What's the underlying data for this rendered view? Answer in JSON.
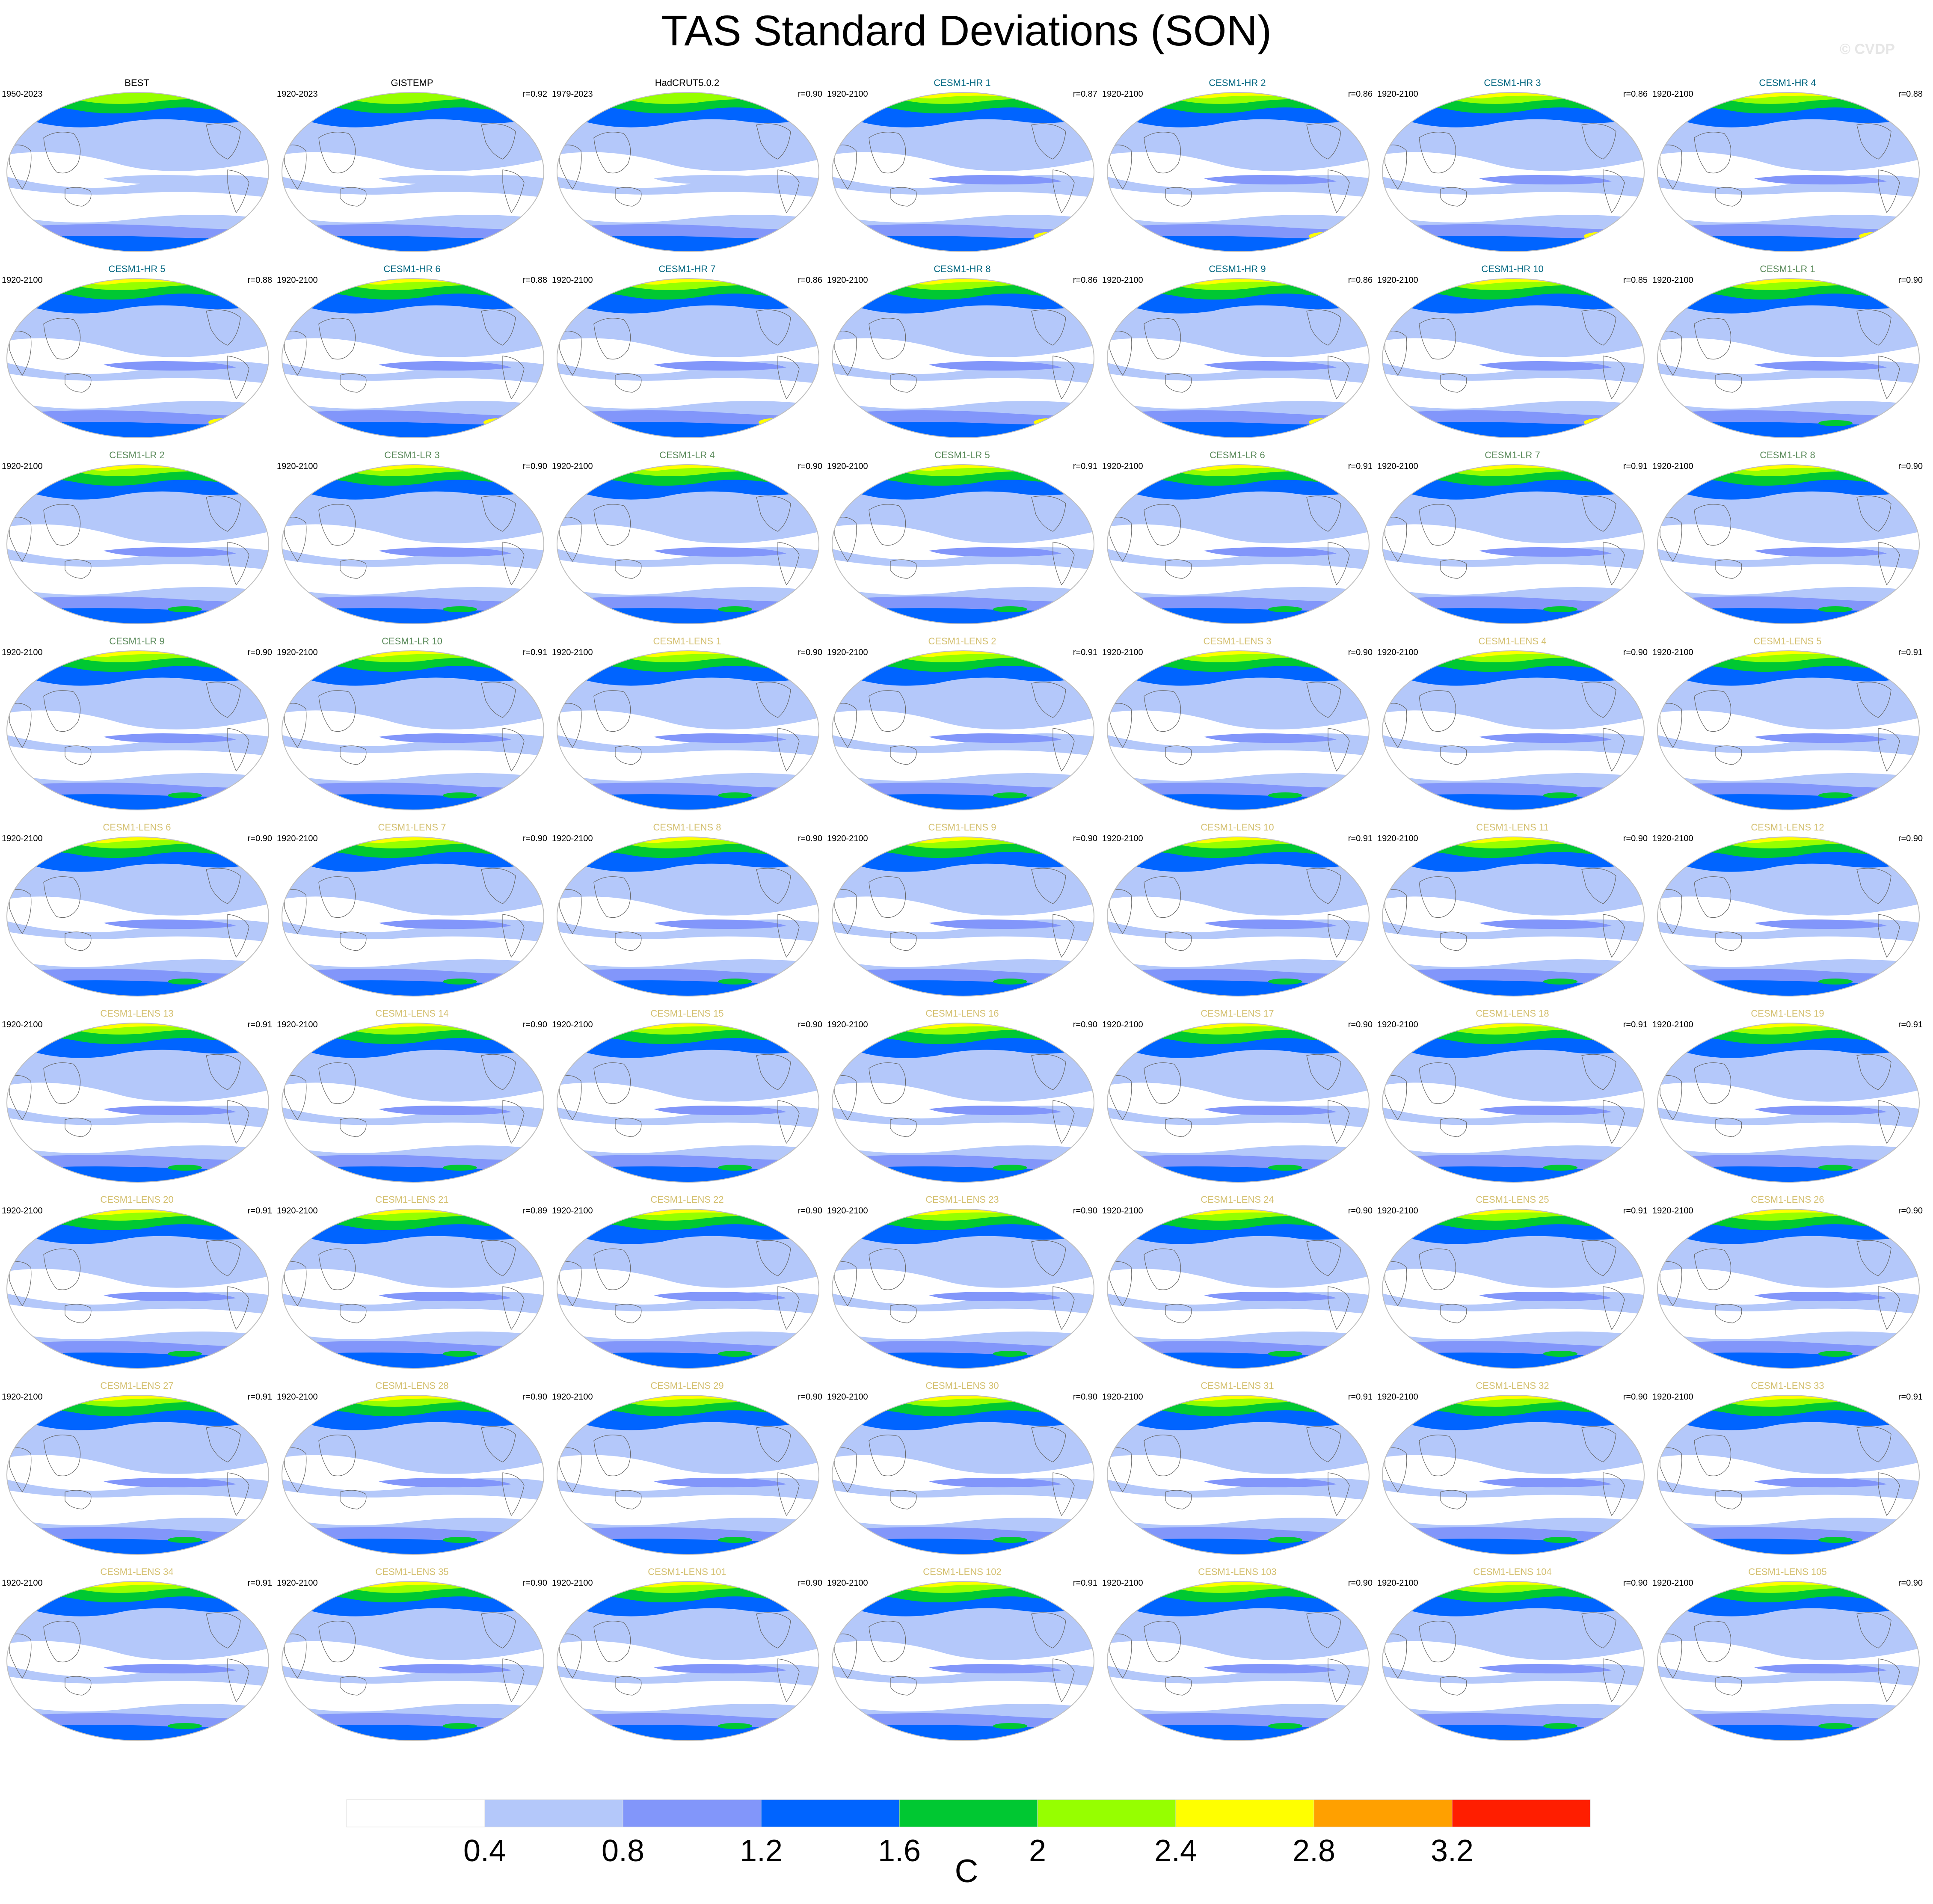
{
  "title": "TAS Standard Deviations (SON)",
  "watermark": "© CVDP",
  "colors": {
    "levels": [
      "#ffffff",
      "#b4c8fa",
      "#8296fa",
      "#0064ff",
      "#00c832",
      "#96ff00",
      "#ffff00",
      "#ffa000",
      "#ff1e00"
    ],
    "obs_label": "#000000",
    "hr_label": "#006680",
    "lr_label": "#5a8a5a",
    "lens_label": "#d4c070",
    "land_outline": "#666666",
    "globe_outline": "#bfbfbf"
  },
  "chart_data": {
    "type": "heatmap",
    "title": "TAS Standard Deviations (SON)",
    "colorbar": {
      "ticks": [
        "0.4",
        "0.8",
        "1.2",
        "1.6",
        "2",
        "2.4",
        "2.8",
        "3.2"
      ],
      "unit": "C"
    },
    "panels": [
      {
        "name": "BEST",
        "years": "1950-2023",
        "corr": "",
        "group": "obs"
      },
      {
        "name": "GISTEMP",
        "years": "1920-2023",
        "corr": "r=0.92",
        "group": "obs"
      },
      {
        "name": "HadCRUT5.0.2",
        "years": "1979-2023",
        "corr": "r=0.90",
        "group": "obs"
      },
      {
        "name": "CESM1-HR 1",
        "years": "1920-2100",
        "corr": "r=0.87",
        "group": "hr"
      },
      {
        "name": "CESM1-HR 2",
        "years": "1920-2100",
        "corr": "r=0.86",
        "group": "hr"
      },
      {
        "name": "CESM1-HR 3",
        "years": "1920-2100",
        "corr": "r=0.86",
        "group": "hr"
      },
      {
        "name": "CESM1-HR 4",
        "years": "1920-2100",
        "corr": "r=0.88",
        "group": "hr"
      },
      {
        "name": "CESM1-HR 5",
        "years": "1920-2100",
        "corr": "r=0.88",
        "group": "hr"
      },
      {
        "name": "CESM1-HR 6",
        "years": "1920-2100",
        "corr": "r=0.88",
        "group": "hr"
      },
      {
        "name": "CESM1-HR 7",
        "years": "1920-2100",
        "corr": "r=0.86",
        "group": "hr"
      },
      {
        "name": "CESM1-HR 8",
        "years": "1920-2100",
        "corr": "r=0.86",
        "group": "hr"
      },
      {
        "name": "CESM1-HR 9",
        "years": "1920-2100",
        "corr": "r=0.86",
        "group": "hr"
      },
      {
        "name": "CESM1-HR 10",
        "years": "1920-2100",
        "corr": "r=0.85",
        "group": "hr"
      },
      {
        "name": "CESM1-LR 1",
        "years": "1920-2100",
        "corr": "r=0.90",
        "group": "lr"
      },
      {
        "name": "CESM1-LR 2",
        "years": "1920-2100",
        "corr": "",
        "group": "lr"
      },
      {
        "name": "CESM1-LR 3",
        "years": "1920-2100",
        "corr": "r=0.90",
        "group": "lr"
      },
      {
        "name": "CESM1-LR 4",
        "years": "1920-2100",
        "corr": "r=0.90",
        "group": "lr"
      },
      {
        "name": "CESM1-LR 5",
        "years": "1920-2100",
        "corr": "r=0.91",
        "group": "lr"
      },
      {
        "name": "CESM1-LR 6",
        "years": "1920-2100",
        "corr": "r=0.91",
        "group": "lr"
      },
      {
        "name": "CESM1-LR 7",
        "years": "1920-2100",
        "corr": "r=0.91",
        "group": "lr"
      },
      {
        "name": "CESM1-LR 8",
        "years": "1920-2100",
        "corr": "r=0.90",
        "group": "lr"
      },
      {
        "name": "CESM1-LR 9",
        "years": "1920-2100",
        "corr": "r=0.90",
        "group": "lr"
      },
      {
        "name": "CESM1-LR 10",
        "years": "1920-2100",
        "corr": "r=0.91",
        "group": "lr"
      },
      {
        "name": "CESM1-LENS 1",
        "years": "1920-2100",
        "corr": "r=0.90",
        "group": "lens"
      },
      {
        "name": "CESM1-LENS 2",
        "years": "1920-2100",
        "corr": "r=0.91",
        "group": "lens"
      },
      {
        "name": "CESM1-LENS 3",
        "years": "1920-2100",
        "corr": "r=0.90",
        "group": "lens"
      },
      {
        "name": "CESM1-LENS 4",
        "years": "1920-2100",
        "corr": "r=0.90",
        "group": "lens"
      },
      {
        "name": "CESM1-LENS 5",
        "years": "1920-2100",
        "corr": "r=0.91",
        "group": "lens"
      },
      {
        "name": "CESM1-LENS 6",
        "years": "1920-2100",
        "corr": "r=0.90",
        "group": "lens"
      },
      {
        "name": "CESM1-LENS 7",
        "years": "1920-2100",
        "corr": "r=0.90",
        "group": "lens"
      },
      {
        "name": "CESM1-LENS 8",
        "years": "1920-2100",
        "corr": "r=0.90",
        "group": "lens"
      },
      {
        "name": "CESM1-LENS 9",
        "years": "1920-2100",
        "corr": "r=0.90",
        "group": "lens"
      },
      {
        "name": "CESM1-LENS 10",
        "years": "1920-2100",
        "corr": "r=0.91",
        "group": "lens"
      },
      {
        "name": "CESM1-LENS 11",
        "years": "1920-2100",
        "corr": "r=0.90",
        "group": "lens"
      },
      {
        "name": "CESM1-LENS 12",
        "years": "1920-2100",
        "corr": "r=0.90",
        "group": "lens"
      },
      {
        "name": "CESM1-LENS 13",
        "years": "1920-2100",
        "corr": "r=0.91",
        "group": "lens"
      },
      {
        "name": "CESM1-LENS 14",
        "years": "1920-2100",
        "corr": "r=0.90",
        "group": "lens"
      },
      {
        "name": "CESM1-LENS 15",
        "years": "1920-2100",
        "corr": "r=0.90",
        "group": "lens"
      },
      {
        "name": "CESM1-LENS 16",
        "years": "1920-2100",
        "corr": "r=0.90",
        "group": "lens"
      },
      {
        "name": "CESM1-LENS 17",
        "years": "1920-2100",
        "corr": "r=0.90",
        "group": "lens"
      },
      {
        "name": "CESM1-LENS 18",
        "years": "1920-2100",
        "corr": "r=0.91",
        "group": "lens"
      },
      {
        "name": "CESM1-LENS 19",
        "years": "1920-2100",
        "corr": "r=0.91",
        "group": "lens"
      },
      {
        "name": "CESM1-LENS 20",
        "years": "1920-2100",
        "corr": "r=0.91",
        "group": "lens"
      },
      {
        "name": "CESM1-LENS 21",
        "years": "1920-2100",
        "corr": "r=0.89",
        "group": "lens"
      },
      {
        "name": "CESM1-LENS 22",
        "years": "1920-2100",
        "corr": "r=0.90",
        "group": "lens"
      },
      {
        "name": "CESM1-LENS 23",
        "years": "1920-2100",
        "corr": "r=0.90",
        "group": "lens"
      },
      {
        "name": "CESM1-LENS 24",
        "years": "1920-2100",
        "corr": "r=0.90",
        "group": "lens"
      },
      {
        "name": "CESM1-LENS 25",
        "years": "1920-2100",
        "corr": "r=0.91",
        "group": "lens"
      },
      {
        "name": "CESM1-LENS 26",
        "years": "1920-2100",
        "corr": "r=0.90",
        "group": "lens"
      },
      {
        "name": "CESM1-LENS 27",
        "years": "1920-2100",
        "corr": "r=0.91",
        "group": "lens"
      },
      {
        "name": "CESM1-LENS 28",
        "years": "1920-2100",
        "corr": "r=0.90",
        "group": "lens"
      },
      {
        "name": "CESM1-LENS 29",
        "years": "1920-2100",
        "corr": "r=0.90",
        "group": "lens"
      },
      {
        "name": "CESM1-LENS 30",
        "years": "1920-2100",
        "corr": "r=0.90",
        "group": "lens"
      },
      {
        "name": "CESM1-LENS 31",
        "years": "1920-2100",
        "corr": "r=0.91",
        "group": "lens"
      },
      {
        "name": "CESM1-LENS 32",
        "years": "1920-2100",
        "corr": "r=0.90",
        "group": "lens"
      },
      {
        "name": "CESM1-LENS 33",
        "years": "1920-2100",
        "corr": "r=0.91",
        "group": "lens"
      },
      {
        "name": "CESM1-LENS 34",
        "years": "1920-2100",
        "corr": "r=0.91",
        "group": "lens"
      },
      {
        "name": "CESM1-LENS 35",
        "years": "1920-2100",
        "corr": "r=0.90",
        "group": "lens"
      },
      {
        "name": "CESM1-LENS 101",
        "years": "1920-2100",
        "corr": "r=0.90",
        "group": "lens"
      },
      {
        "name": "CESM1-LENS 102",
        "years": "1920-2100",
        "corr": "r=0.91",
        "group": "lens"
      },
      {
        "name": "CESM1-LENS 103",
        "years": "1920-2100",
        "corr": "r=0.90",
        "group": "lens"
      },
      {
        "name": "CESM1-LENS 104",
        "years": "1920-2100",
        "corr": "r=0.90",
        "group": "lens"
      },
      {
        "name": "CESM1-LENS 105",
        "years": "1920-2100",
        "corr": "r=0.90",
        "group": "lens"
      }
    ]
  }
}
